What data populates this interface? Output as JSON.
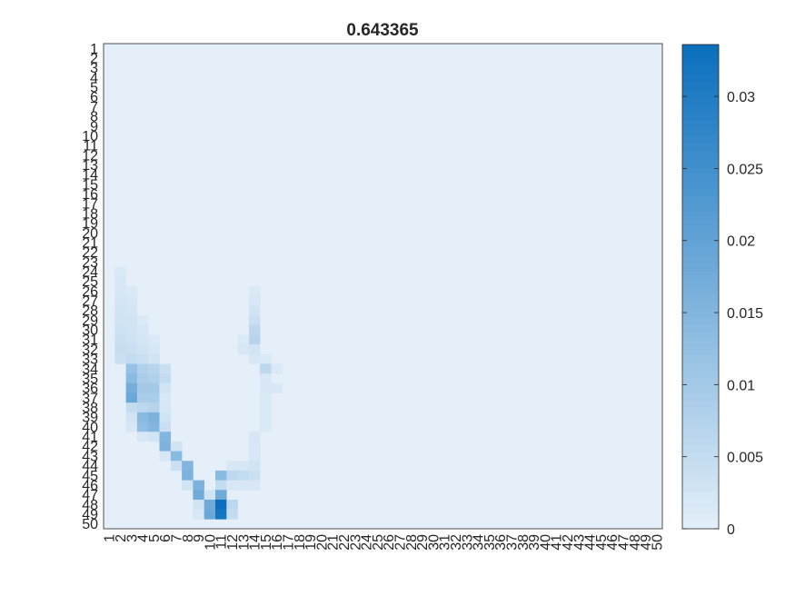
{
  "chart_data": {
    "type": "heatmap",
    "title": "0.643365",
    "rows": 50,
    "cols": 50,
    "x_tick_labels": [
      "1",
      "2",
      "3",
      "4",
      "5",
      "6",
      "7",
      "8",
      "9",
      "10",
      "11",
      "12",
      "13",
      "14",
      "15",
      "16",
      "17",
      "18",
      "19",
      "20",
      "21",
      "22",
      "23",
      "24",
      "25",
      "26",
      "27",
      "28",
      "29",
      "30",
      "31",
      "32",
      "33",
      "34",
      "35",
      "36",
      "37",
      "38",
      "39",
      "40",
      "41",
      "42",
      "43",
      "44",
      "45",
      "46",
      "47",
      "48",
      "49",
      "50"
    ],
    "y_tick_labels": [
      "1",
      "2",
      "3",
      "4",
      "5",
      "6",
      "7",
      "8",
      "9",
      "10",
      "11",
      "12",
      "13",
      "14",
      "15",
      "16",
      "17",
      "18",
      "19",
      "20",
      "21",
      "22",
      "23",
      "24",
      "25",
      "26",
      "27",
      "28",
      "29",
      "30",
      "31",
      "32",
      "33",
      "34",
      "35",
      "36",
      "37",
      "38",
      "39",
      "40",
      "41",
      "42",
      "43",
      "44",
      "45",
      "46",
      "47",
      "48",
      "49",
      "50"
    ],
    "color_min": 0,
    "color_max": 0.0336,
    "colormap": {
      "low": "#e4eff9",
      "high": "#0a6fbd"
    },
    "colorbar_ticks": [
      {
        "value": 0,
        "label": "0"
      },
      {
        "value": 0.005,
        "label": "0.005"
      },
      {
        "value": 0.01,
        "label": "0.01"
      },
      {
        "value": 0.015,
        "label": "0.015"
      },
      {
        "value": 0.02,
        "label": "0.02"
      },
      {
        "value": 0.025,
        "label": "0.025"
      },
      {
        "value": 0.03,
        "label": "0.03"
      }
    ],
    "cells": [
      {
        "row": 24,
        "col": 2,
        "value": 0.0015
      },
      {
        "row": 25,
        "col": 2,
        "value": 0.0018
      },
      {
        "row": 26,
        "col": 2,
        "value": 0.002
      },
      {
        "row": 27,
        "col": 2,
        "value": 0.0025
      },
      {
        "row": 28,
        "col": 2,
        "value": 0.003
      },
      {
        "row": 29,
        "col": 2,
        "value": 0.0032
      },
      {
        "row": 30,
        "col": 2,
        "value": 0.0035
      },
      {
        "row": 31,
        "col": 2,
        "value": 0.004
      },
      {
        "row": 32,
        "col": 2,
        "value": 0.0045
      },
      {
        "row": 33,
        "col": 2,
        "value": 0.004
      },
      {
        "row": 26,
        "col": 3,
        "value": 0.0015
      },
      {
        "row": 27,
        "col": 3,
        "value": 0.002
      },
      {
        "row": 28,
        "col": 3,
        "value": 0.0025
      },
      {
        "row": 29,
        "col": 3,
        "value": 0.003
      },
      {
        "row": 30,
        "col": 3,
        "value": 0.003
      },
      {
        "row": 31,
        "col": 3,
        "value": 0.0035
      },
      {
        "row": 32,
        "col": 3,
        "value": 0.004
      },
      {
        "row": 33,
        "col": 3,
        "value": 0.005
      },
      {
        "row": 34,
        "col": 3,
        "value": 0.012
      },
      {
        "row": 35,
        "col": 3,
        "value": 0.014
      },
      {
        "row": 36,
        "col": 3,
        "value": 0.017
      },
      {
        "row": 37,
        "col": 3,
        "value": 0.019
      },
      {
        "row": 38,
        "col": 3,
        "value": 0.005
      },
      {
        "row": 39,
        "col": 3,
        "value": 0.003
      },
      {
        "row": 40,
        "col": 3,
        "value": 0.002
      },
      {
        "row": 29,
        "col": 4,
        "value": 0.0015
      },
      {
        "row": 30,
        "col": 4,
        "value": 0.002
      },
      {
        "row": 31,
        "col": 4,
        "value": 0.0025
      },
      {
        "row": 32,
        "col": 4,
        "value": 0.003
      },
      {
        "row": 33,
        "col": 4,
        "value": 0.004
      },
      {
        "row": 34,
        "col": 4,
        "value": 0.008
      },
      {
        "row": 35,
        "col": 4,
        "value": 0.009
      },
      {
        "row": 36,
        "col": 4,
        "value": 0.01
      },
      {
        "row": 37,
        "col": 4,
        "value": 0.009
      },
      {
        "row": 38,
        "col": 4,
        "value": 0.006
      },
      {
        "row": 39,
        "col": 4,
        "value": 0.014
      },
      {
        "row": 40,
        "col": 4,
        "value": 0.013
      },
      {
        "row": 41,
        "col": 4,
        "value": 0.002
      },
      {
        "row": 31,
        "col": 5,
        "value": 0.0015
      },
      {
        "row": 32,
        "col": 5,
        "value": 0.002
      },
      {
        "row": 33,
        "col": 5,
        "value": 0.003
      },
      {
        "row": 34,
        "col": 5,
        "value": 0.007
      },
      {
        "row": 35,
        "col": 5,
        "value": 0.008
      },
      {
        "row": 36,
        "col": 5,
        "value": 0.01
      },
      {
        "row": 37,
        "col": 5,
        "value": 0.009
      },
      {
        "row": 38,
        "col": 5,
        "value": 0.007
      },
      {
        "row": 39,
        "col": 5,
        "value": 0.016
      },
      {
        "row": 40,
        "col": 5,
        "value": 0.015
      },
      {
        "row": 41,
        "col": 5,
        "value": 0.003
      },
      {
        "row": 34,
        "col": 6,
        "value": 0.004
      },
      {
        "row": 35,
        "col": 6,
        "value": 0.005
      },
      {
        "row": 36,
        "col": 6,
        "value": 0.003
      },
      {
        "row": 37,
        "col": 6,
        "value": 0.002
      },
      {
        "row": 38,
        "col": 6,
        "value": 0.002
      },
      {
        "row": 39,
        "col": 6,
        "value": 0.003
      },
      {
        "row": 40,
        "col": 6,
        "value": 0.004
      },
      {
        "row": 41,
        "col": 6,
        "value": 0.015
      },
      {
        "row": 42,
        "col": 6,
        "value": 0.016
      },
      {
        "row": 43,
        "col": 6,
        "value": 0.002
      },
      {
        "row": 42,
        "col": 7,
        "value": 0.003
      },
      {
        "row": 43,
        "col": 7,
        "value": 0.014
      },
      {
        "row": 44,
        "col": 7,
        "value": 0.004
      },
      {
        "row": 44,
        "col": 8,
        "value": 0.015
      },
      {
        "row": 45,
        "col": 8,
        "value": 0.016
      },
      {
        "row": 46,
        "col": 8,
        "value": 0.003
      },
      {
        "row": 46,
        "col": 9,
        "value": 0.016
      },
      {
        "row": 47,
        "col": 9,
        "value": 0.018
      },
      {
        "row": 48,
        "col": 9,
        "value": 0.003
      },
      {
        "row": 49,
        "col": 9,
        "value": 0.002
      },
      {
        "row": 47,
        "col": 10,
        "value": 0.003
      },
      {
        "row": 48,
        "col": 10,
        "value": 0.018
      },
      {
        "row": 49,
        "col": 10,
        "value": 0.019
      },
      {
        "row": 45,
        "col": 11,
        "value": 0.014
      },
      {
        "row": 46,
        "col": 11,
        "value": 0.005
      },
      {
        "row": 47,
        "col": 11,
        "value": 0.018
      },
      {
        "row": 48,
        "col": 11,
        "value": 0.0336
      },
      {
        "row": 49,
        "col": 11,
        "value": 0.032
      },
      {
        "row": 44,
        "col": 12,
        "value": 0.002
      },
      {
        "row": 45,
        "col": 12,
        "value": 0.006
      },
      {
        "row": 46,
        "col": 12,
        "value": 0.002
      },
      {
        "row": 48,
        "col": 12,
        "value": 0.006
      },
      {
        "row": 49,
        "col": 12,
        "value": 0.005
      },
      {
        "row": 44,
        "col": 13,
        "value": 0.002
      },
      {
        "row": 45,
        "col": 13,
        "value": 0.005
      },
      {
        "row": 46,
        "col": 13,
        "value": 0.002
      },
      {
        "row": 26,
        "col": 14,
        "value": 0.0015
      },
      {
        "row": 27,
        "col": 14,
        "value": 0.002
      },
      {
        "row": 28,
        "col": 14,
        "value": 0.003
      },
      {
        "row": 29,
        "col": 14,
        "value": 0.004
      },
      {
        "row": 30,
        "col": 14,
        "value": 0.006
      },
      {
        "row": 31,
        "col": 14,
        "value": 0.007
      },
      {
        "row": 32,
        "col": 14,
        "value": 0.003
      },
      {
        "row": 33,
        "col": 14,
        "value": 0.002
      },
      {
        "row": 41,
        "col": 14,
        "value": 0.002
      },
      {
        "row": 42,
        "col": 14,
        "value": 0.002
      },
      {
        "row": 43,
        "col": 14,
        "value": 0.002
      },
      {
        "row": 44,
        "col": 14,
        "value": 0.003
      },
      {
        "row": 45,
        "col": 14,
        "value": 0.004
      },
      {
        "row": 46,
        "col": 14,
        "value": 0.002
      },
      {
        "row": 31,
        "col": 13,
        "value": 0.0015
      },
      {
        "row": 32,
        "col": 13,
        "value": 0.002
      },
      {
        "row": 33,
        "col": 15,
        "value": 0.0015
      },
      {
        "row": 34,
        "col": 15,
        "value": 0.006
      },
      {
        "row": 35,
        "col": 15,
        "value": 0.002
      },
      {
        "row": 36,
        "col": 15,
        "value": 0.002
      },
      {
        "row": 37,
        "col": 15,
        "value": 0.0015
      },
      {
        "row": 38,
        "col": 15,
        "value": 0.0015
      },
      {
        "row": 39,
        "col": 15,
        "value": 0.0015
      },
      {
        "row": 40,
        "col": 15,
        "value": 0.0015
      },
      {
        "row": 34,
        "col": 16,
        "value": 0.0015
      },
      {
        "row": 36,
        "col": 16,
        "value": 0.002
      }
    ]
  }
}
